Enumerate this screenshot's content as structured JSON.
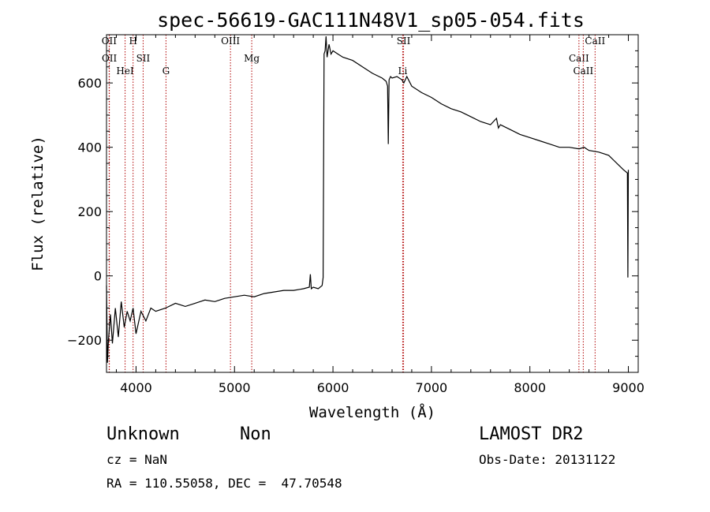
{
  "chart_data": {
    "type": "line",
    "title": "spec-56619-GAC111N48V1_sp05-054.fits",
    "xlabel": "Wavelength (Å)",
    "ylabel": "Flux (relative)",
    "xlim": [
      3700,
      9100
    ],
    "ylim": [
      -300,
      750
    ],
    "x_ticks": [
      4000,
      5000,
      6000,
      7000,
      8000,
      9000
    ],
    "x_tick_labels": [
      "4000",
      "5000",
      "6000",
      "7000",
      "8000",
      "9000"
    ],
    "y_ticks": [
      -200,
      0,
      200,
      400,
      600
    ],
    "y_tick_labels": [
      "−200",
      "0",
      "200",
      "400",
      "600"
    ],
    "grid": false,
    "series": [
      {
        "x": [
          3700,
          3710,
          3720,
          3740,
          3760,
          3790,
          3820,
          3850,
          3880,
          3910,
          3940,
          3970,
          4000,
          4050,
          4100,
          4150,
          4200,
          4300,
          4400,
          4500,
          4600,
          4700,
          4800,
          4900,
          5000,
          5100,
          5200,
          5300,
          5400,
          5500,
          5600,
          5700,
          5760,
          5770,
          5780,
          5800,
          5850,
          5890,
          5900,
          5910,
          5920,
          5930,
          5940,
          5960,
          5980,
          6000,
          6050,
          6100,
          6200,
          6300,
          6400,
          6500,
          6540,
          6555,
          6562,
          6570,
          6585,
          6600,
          6650,
          6700,
          6720,
          6750,
          6800,
          6900,
          7000,
          7100,
          7200,
          7300,
          7400,
          7500,
          7600,
          7660,
          7680,
          7700,
          7800,
          7900,
          8000,
          8100,
          8200,
          8300,
          8400,
          8500,
          8550,
          8600,
          8700,
          8800,
          8850,
          8900,
          8950,
          8990,
          8995,
          9000
        ],
        "y": [
          -30,
          -270,
          -200,
          -120,
          -210,
          -100,
          -190,
          -80,
          -160,
          -110,
          -140,
          -100,
          -180,
          -110,
          -140,
          -100,
          -110,
          -100,
          -85,
          -95,
          -85,
          -75,
          -80,
          -70,
          -65,
          -60,
          -65,
          -55,
          -50,
          -45,
          -45,
          -40,
          -35,
          5,
          -40,
          -35,
          -40,
          -30,
          -5,
          690,
          700,
          745,
          680,
          720,
          690,
          700,
          690,
          680,
          670,
          650,
          630,
          615,
          605,
          590,
          410,
          610,
          620,
          615,
          620,
          610,
          600,
          620,
          590,
          570,
          555,
          535,
          520,
          510,
          495,
          480,
          470,
          490,
          460,
          470,
          455,
          440,
          430,
          420,
          410,
          400,
          400,
          395,
          400,
          390,
          385,
          375,
          360,
          345,
          330,
          320,
          -5,
          330
        ]
      }
    ],
    "line_markers": [
      {
        "label": "OII",
        "x": 3727
      },
      {
        "label": "OII",
        "x": 3729
      },
      {
        "label": "HeI",
        "x": 3889
      },
      {
        "label": "H",
        "x": 3970
      },
      {
        "label": "SII",
        "x": 4072
      },
      {
        "label": "G",
        "x": 4304
      },
      {
        "label": "OIII",
        "x": 4959
      },
      {
        "label": "Mg",
        "x": 5175
      },
      {
        "label": "Li",
        "x": 6708
      },
      {
        "label": "SII",
        "x": 6717
      },
      {
        "label": "CaII",
        "x": 8498
      },
      {
        "label": "CaII",
        "x": 8542
      },
      {
        "label": "CaII",
        "x": 8662
      }
    ]
  },
  "info": {
    "class_label": "Unknown",
    "subclass_label": "Non",
    "survey": "LAMOST DR2",
    "cz": "cz = NaN",
    "obs_date": "Obs-Date: 20131122",
    "radec": "RA = 110.55058, DEC =  47.70548"
  },
  "colors": {
    "line_marker": "#b00000",
    "spectrum": "#000000"
  }
}
